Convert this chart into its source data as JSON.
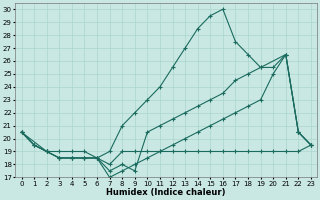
{
  "xlabel": "Humidex (Indice chaleur)",
  "xlim": [
    -0.5,
    23.5
  ],
  "ylim": [
    17,
    30.5
  ],
  "yticks": [
    17,
    18,
    19,
    20,
    21,
    22,
    23,
    24,
    25,
    26,
    27,
    28,
    29,
    30
  ],
  "xticks": [
    0,
    1,
    2,
    3,
    4,
    5,
    6,
    7,
    8,
    9,
    10,
    11,
    12,
    13,
    14,
    15,
    16,
    17,
    18,
    19,
    20,
    21,
    22,
    23
  ],
  "bg_color": "#c9e8e4",
  "line_color": "#1a6b5e",
  "grid_color": "#aad4cc",
  "line1_x": [
    0,
    1,
    2,
    3,
    4,
    5,
    6,
    7,
    8,
    9,
    10,
    11,
    12,
    13,
    14,
    15,
    16,
    17,
    18,
    19,
    21,
    22,
    23
  ],
  "line1_y": [
    20.5,
    19.5,
    19.0,
    19.0,
    19.0,
    19.0,
    18.5,
    19.0,
    21.0,
    22.0,
    23.0,
    24.0,
    25.5,
    27.0,
    28.5,
    29.5,
    30.0,
    27.5,
    26.5,
    25.5,
    26.5,
    20.5,
    19.5
  ],
  "line2_x": [
    0,
    1,
    2,
    3,
    4,
    5,
    6,
    7,
    8,
    9,
    10,
    11,
    12,
    13,
    14,
    15,
    16,
    17,
    18,
    19,
    20,
    21,
    22,
    23
  ],
  "line2_y": [
    20.5,
    19.5,
    19.0,
    18.5,
    18.5,
    18.5,
    18.5,
    18.0,
    19.0,
    19.0,
    19.0,
    19.0,
    19.0,
    19.0,
    19.0,
    19.0,
    19.0,
    19.0,
    19.0,
    19.0,
    19.0,
    19.0,
    19.0,
    19.5
  ],
  "line3_x": [
    0,
    1,
    2,
    3,
    4,
    5,
    6,
    7,
    8,
    9,
    10,
    11,
    12,
    13,
    14,
    15,
    16,
    17,
    18,
    19,
    20,
    21,
    22,
    23
  ],
  "line3_y": [
    20.5,
    19.5,
    19.0,
    18.5,
    18.5,
    18.5,
    18.5,
    17.5,
    18.0,
    17.5,
    20.5,
    21.0,
    21.5,
    22.0,
    22.5,
    23.0,
    23.5,
    24.5,
    25.0,
    25.5,
    25.5,
    26.5,
    20.5,
    19.5
  ],
  "line4_x": [
    0,
    2,
    3,
    4,
    5,
    6,
    7,
    8,
    9,
    10,
    11,
    12,
    13,
    14,
    15,
    16,
    17,
    18,
    19,
    20,
    21,
    22,
    23
  ],
  "line4_y": [
    20.5,
    19.0,
    18.5,
    18.5,
    18.5,
    18.5,
    17.0,
    17.5,
    18.0,
    18.5,
    19.0,
    19.5,
    20.0,
    20.5,
    21.0,
    21.5,
    22.0,
    22.5,
    23.0,
    25.0,
    26.5,
    20.5,
    19.5
  ]
}
